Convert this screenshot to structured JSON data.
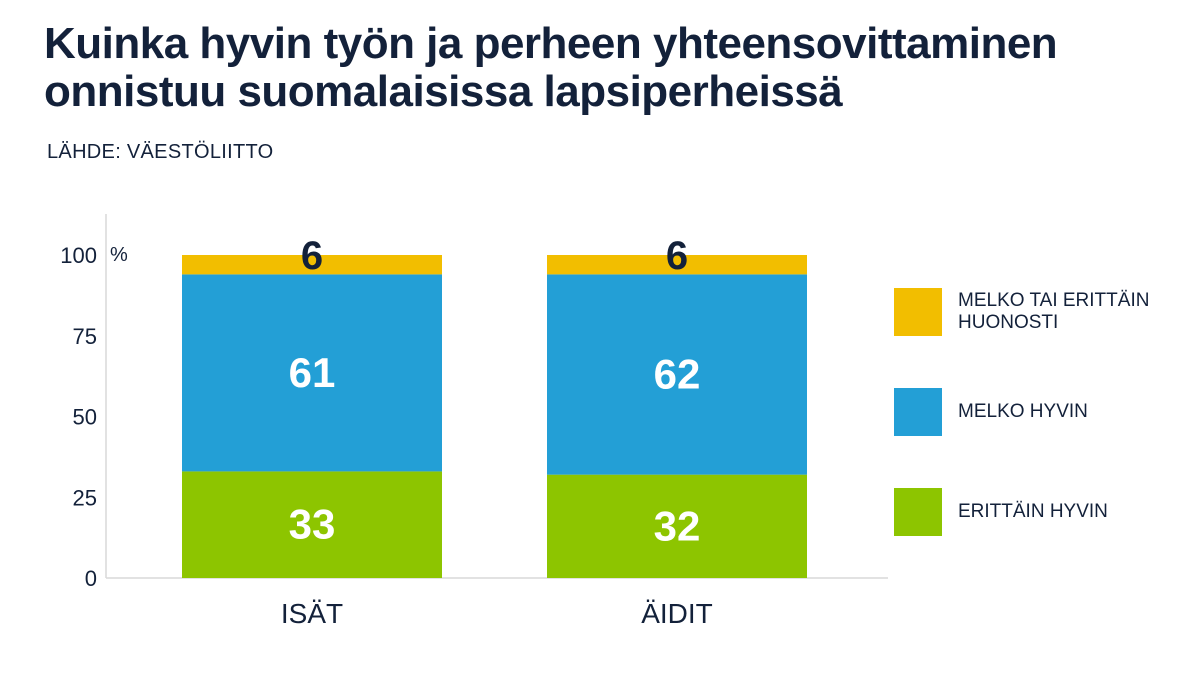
{
  "header": {
    "title_line1": "Kuinka hyvin työn ja perheen yhteensovittaminen",
    "title_line2": "onnistuu suomalaisissa lapsiperheissä",
    "source": "LÄHDE: VÄESTÖLIITTO"
  },
  "chart_data": {
    "type": "bar",
    "stacked": true,
    "categories": [
      "ISÄT",
      "ÄIDIT"
    ],
    "series": [
      {
        "name": "ERITTÄIN HYVIN",
        "values": [
          33,
          32
        ],
        "color": "#8dc500"
      },
      {
        "name": "MELKO HYVIN",
        "values": [
          61,
          62
        ],
        "color": "#239fd6"
      },
      {
        "name": "MELKO TAI ERITTÄIN HUONOSTI",
        "values": [
          6,
          6
        ],
        "color": "#f2be00"
      }
    ],
    "ylim": [
      0,
      100
    ],
    "yticks": [
      0,
      25,
      50,
      75,
      100
    ],
    "ytick_labels": [
      "0",
      "25",
      "50",
      "75",
      "100"
    ],
    "yunit": "%",
    "grid": false,
    "legend_position": "right",
    "legend_order": [
      "MELKO TAI ERITTÄIN HUONOSTI",
      "MELKO HYVIN",
      "ERITTÄIN HYVIN"
    ],
    "label_colors": {
      "ERITTÄIN HYVIN": "#ffffff",
      "MELKO HYVIN": "#ffffff",
      "MELKO TAI ERITTÄIN HUONOSTI": "#13213a"
    }
  },
  "legend": {
    "items": [
      {
        "label": "MELKO TAI ERITTÄIN HUONOSTI",
        "color": "#f2be00"
      },
      {
        "label": "MELKO HYVIN",
        "color": "#239fd6"
      },
      {
        "label": "ERITTÄIN HYVIN",
        "color": "#8dc500"
      }
    ]
  }
}
